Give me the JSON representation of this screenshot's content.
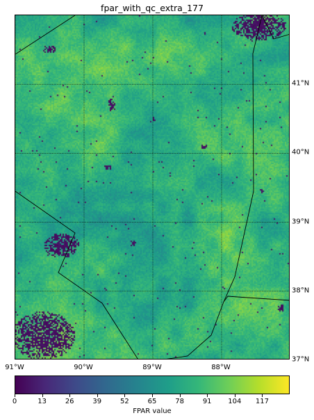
{
  "figure": {
    "title": "fpar_with_qc_extra_177"
  },
  "map": {
    "lon_range": [
      -91,
      -87
    ],
    "lat_range": [
      37,
      42
    ],
    "gridlines": true,
    "lat_labels": [
      {
        "value": 41,
        "text": "41°N"
      },
      {
        "value": 40,
        "text": "40°N"
      },
      {
        "value": 39,
        "text": "39°N"
      },
      {
        "value": 38,
        "text": "38°N"
      },
      {
        "value": 37,
        "text": "37°N"
      }
    ],
    "lon_labels": [
      {
        "value": -91,
        "text": "91°W"
      },
      {
        "value": -90,
        "text": "90°W"
      },
      {
        "value": -89,
        "text": "89°W"
      },
      {
        "value": -88,
        "text": "88°W"
      }
    ],
    "colormap": "viridis"
  },
  "colorbar": {
    "label": "FPAR value",
    "min": 0,
    "max": 130,
    "ticks": [
      {
        "value": 0,
        "text": "0"
      },
      {
        "value": 13,
        "text": "13"
      },
      {
        "value": 26,
        "text": "26"
      },
      {
        "value": 39,
        "text": "39"
      },
      {
        "value": 52,
        "text": "52"
      },
      {
        "value": 65,
        "text": "65"
      },
      {
        "value": 78,
        "text": "78"
      },
      {
        "value": 91,
        "text": "91"
      },
      {
        "value": 104,
        "text": "104"
      },
      {
        "value": 117,
        "text": "117"
      }
    ]
  }
}
